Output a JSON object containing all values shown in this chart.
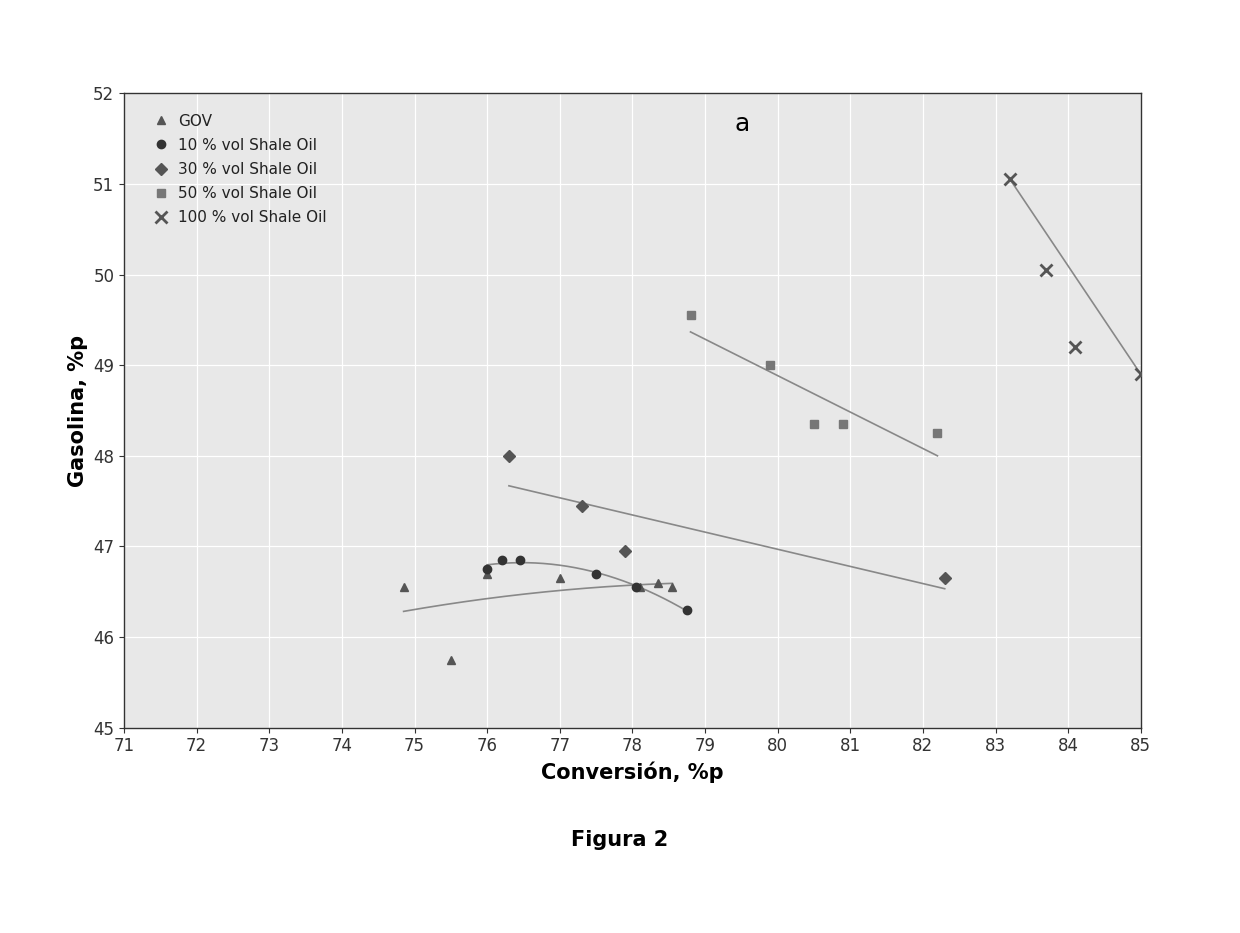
{
  "title_label": "a",
  "xlabel": "Conversión, %p",
  "ylabel": "Gasolina, %p",
  "xlim": [
    71,
    85
  ],
  "ylim": [
    45,
    52
  ],
  "xticks": [
    71,
    72,
    73,
    74,
    75,
    76,
    77,
    78,
    79,
    80,
    81,
    82,
    83,
    84,
    85
  ],
  "yticks": [
    45,
    46,
    47,
    48,
    49,
    50,
    51,
    52
  ],
  "figura_label": "Figura 2",
  "GOV": {
    "x": [
      74.85,
      75.5,
      76.0,
      77.0,
      78.1,
      78.35,
      78.55
    ],
    "y": [
      46.55,
      45.75,
      46.7,
      46.65,
      46.55,
      46.6,
      46.55
    ],
    "color": "#555555",
    "marker": "^",
    "markersize": 6,
    "label": "GOV"
  },
  "shale10": {
    "x": [
      76.0,
      76.2,
      76.45,
      77.5,
      78.05,
      78.75
    ],
    "y": [
      46.75,
      46.85,
      46.85,
      46.7,
      46.55,
      46.3
    ],
    "color": "#333333",
    "marker": "o",
    "markersize": 6,
    "label": "10 % vol Shale Oil"
  },
  "shale30": {
    "x": [
      76.3,
      77.3,
      77.9,
      82.3
    ],
    "y": [
      48.0,
      47.45,
      46.95,
      46.65
    ],
    "color": "#555555",
    "marker": "D",
    "markersize": 6,
    "label": "30 % vol Shale Oil"
  },
  "shale50": {
    "x": [
      78.8,
      79.9,
      80.5,
      80.9,
      82.2
    ],
    "y": [
      49.55,
      49.0,
      48.35,
      48.35,
      48.25
    ],
    "color": "#777777",
    "marker": "s",
    "markersize": 6,
    "label": "50 % vol Shale Oil"
  },
  "shale100": {
    "x": [
      83.2,
      83.7,
      84.1,
      85.0
    ],
    "y": [
      51.05,
      50.05,
      49.2,
      48.9
    ],
    "color": "#555555",
    "marker": "x",
    "markersize": 8,
    "label": "100 % vol Shale Oil"
  },
  "figure_bg": "#ffffff",
  "plot_bg": "#e8e8e8",
  "grid_color": "#ffffff",
  "trend_color": "#888888",
  "trend_linewidth": 1.2
}
